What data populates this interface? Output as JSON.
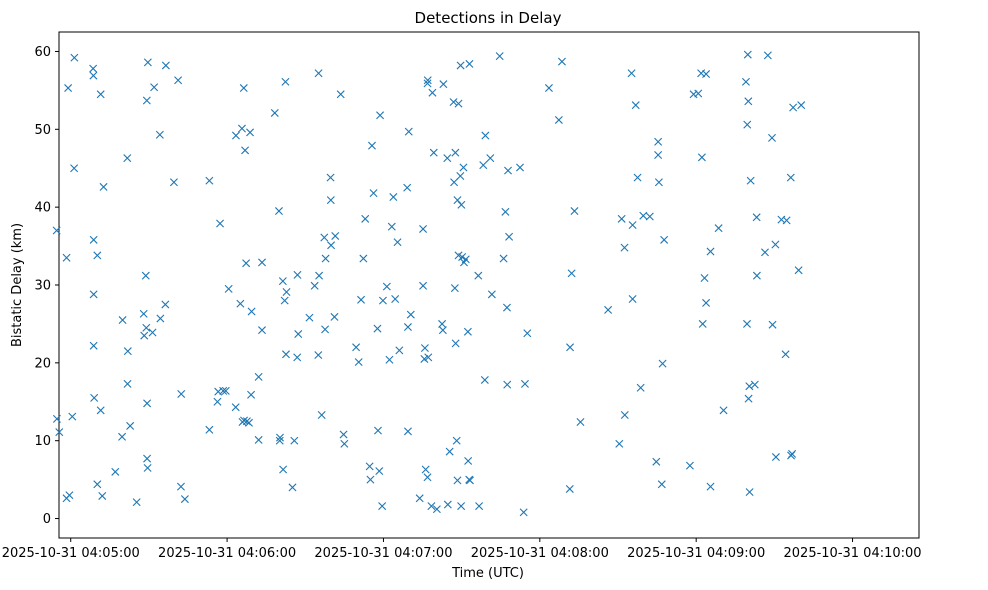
{
  "chart_data": {
    "type": "scatter",
    "title": "Detections in Delay",
    "xlabel": "Time (UTC)",
    "ylabel": "Bistatic Delay (km)",
    "marker": "x",
    "marker_color": "#1f77b4",
    "xlim_seconds": [
      -4.5,
      325.5
    ],
    "ylim": [
      -2.5,
      62.5
    ],
    "x_ticks": [
      {
        "label": "2025-10-31 04:05:00",
        "t": 0
      },
      {
        "label": "2025-10-31 04:06:00",
        "t": 60
      },
      {
        "label": "2025-10-31 04:07:00",
        "t": 120
      },
      {
        "label": "2025-10-31 04:08:00",
        "t": 180
      },
      {
        "label": "2025-10-31 04:09:00",
        "t": 240
      },
      {
        "label": "2025-10-31 04:10:00",
        "t": 300
      }
    ],
    "y_ticks": [
      {
        "label": "0",
        "v": 0
      },
      {
        "label": "10",
        "v": 10
      },
      {
        "label": "20",
        "v": 20
      },
      {
        "label": "30",
        "v": 30
      },
      {
        "label": "40",
        "v": 40
      },
      {
        "label": "50",
        "v": 50
      },
      {
        "label": "60",
        "v": 60
      }
    ],
    "points": [
      [
        -5.4,
        37.0
      ],
      [
        -5.3,
        12.8
      ],
      [
        -4.4,
        11.1
      ],
      [
        -1.6,
        33.5
      ],
      [
        -1.6,
        2.6
      ],
      [
        -1.0,
        55.3
      ],
      [
        -0.5,
        3.0
      ],
      [
        0.6,
        13.1
      ],
      [
        1.3,
        45.0
      ],
      [
        1.4,
        59.2
      ],
      [
        8.6,
        57.8
      ],
      [
        8.7,
        56.9
      ],
      [
        8.8,
        35.8
      ],
      [
        8.8,
        28.8
      ],
      [
        8.8,
        22.2
      ],
      [
        9.0,
        15.5
      ],
      [
        10.2,
        4.4
      ],
      [
        10.2,
        33.8
      ],
      [
        11.5,
        54.5
      ],
      [
        11.5,
        13.9
      ],
      [
        12.1,
        2.9
      ],
      [
        12.6,
        42.6
      ],
      [
        17.1,
        6.0
      ],
      [
        19.7,
        10.5
      ],
      [
        19.9,
        25.5
      ],
      [
        21.7,
        46.3
      ],
      [
        21.8,
        17.3
      ],
      [
        21.9,
        21.5
      ],
      [
        22.8,
        11.9
      ],
      [
        25.3,
        2.1
      ],
      [
        28.0,
        26.3
      ],
      [
        28.2,
        23.5
      ],
      [
        28.8,
        31.2
      ],
      [
        29.0,
        24.5
      ],
      [
        29.2,
        53.7
      ],
      [
        29.3,
        14.8
      ],
      [
        29.3,
        7.7
      ],
      [
        29.5,
        6.5
      ],
      [
        29.6,
        58.6
      ],
      [
        31.4,
        23.9
      ],
      [
        32.0,
        55.4
      ],
      [
        34.2,
        49.3
      ],
      [
        34.4,
        25.7
      ],
      [
        36.3,
        27.5
      ],
      [
        36.5,
        58.2
      ],
      [
        39.6,
        43.2
      ],
      [
        41.2,
        56.3
      ],
      [
        42.3,
        4.1
      ],
      [
        42.4,
        16.0
      ],
      [
        43.8,
        2.5
      ],
      [
        53.2,
        11.4
      ],
      [
        53.2,
        43.4
      ],
      [
        56.3,
        15.0
      ],
      [
        56.6,
        16.3
      ],
      [
        57.3,
        37.9
      ],
      [
        58.5,
        16.4
      ],
      [
        59.5,
        16.4
      ],
      [
        60.6,
        29.5
      ],
      [
        63.3,
        14.3
      ],
      [
        63.4,
        49.2
      ],
      [
        65.1,
        27.6
      ],
      [
        65.7,
        50.1
      ],
      [
        65.9,
        12.4
      ],
      [
        66.4,
        55.3
      ],
      [
        66.5,
        12.6
      ],
      [
        66.9,
        47.3
      ],
      [
        67.3,
        32.8
      ],
      [
        67.6,
        12.5
      ],
      [
        68.4,
        12.3
      ],
      [
        68.8,
        49.6
      ],
      [
        69.2,
        15.9
      ],
      [
        69.4,
        26.6
      ],
      [
        72.1,
        10.1
      ],
      [
        72.1,
        18.2
      ],
      [
        73.4,
        24.2
      ],
      [
        73.4,
        32.9
      ],
      [
        78.3,
        52.1
      ],
      [
        79.9,
        39.5
      ],
      [
        80.2,
        10.0
      ],
      [
        80.3,
        10.4
      ],
      [
        81.4,
        30.5
      ],
      [
        81.5,
        6.3
      ],
      [
        82.1,
        28.0
      ],
      [
        82.4,
        56.1
      ],
      [
        82.6,
        21.1
      ],
      [
        82.8,
        29.1
      ],
      [
        85.1,
        4.0
      ],
      [
        85.8,
        10.0
      ],
      [
        86.9,
        20.7
      ],
      [
        87.0,
        31.3
      ],
      [
        87.3,
        23.7
      ],
      [
        91.6,
        25.8
      ],
      [
        93.6,
        29.9
      ],
      [
        95.0,
        21.0
      ],
      [
        95.1,
        57.2
      ],
      [
        95.3,
        31.2
      ],
      [
        96.3,
        13.3
      ],
      [
        97.3,
        36.1
      ],
      [
        97.6,
        24.3
      ],
      [
        97.8,
        33.4
      ],
      [
        99.7,
        43.8
      ],
      [
        99.8,
        40.9
      ],
      [
        99.9,
        35.1
      ],
      [
        101.2,
        25.9
      ],
      [
        101.5,
        36.3
      ],
      [
        103.6,
        54.5
      ],
      [
        104.7,
        10.8
      ],
      [
        105.0,
        9.6
      ],
      [
        109.5,
        22.0
      ],
      [
        110.5,
        20.1
      ],
      [
        111.4,
        28.1
      ],
      [
        112.3,
        33.4
      ],
      [
        113.0,
        38.5
      ],
      [
        114.7,
        6.7
      ],
      [
        115.0,
        5.0
      ],
      [
        115.6,
        47.9
      ],
      [
        116.2,
        41.8
      ],
      [
        117.7,
        24.4
      ],
      [
        117.9,
        11.3
      ],
      [
        118.4,
        6.1
      ],
      [
        118.7,
        51.8
      ],
      [
        119.5,
        1.6
      ],
      [
        119.8,
        28.0
      ],
      [
        121.3,
        29.8
      ],
      [
        122.3,
        20.4
      ],
      [
        123.2,
        37.5
      ],
      [
        123.8,
        41.3
      ],
      [
        124.5,
        28.2
      ],
      [
        125.4,
        35.5
      ],
      [
        126.1,
        21.6
      ],
      [
        129.1,
        42.5
      ],
      [
        129.4,
        24.6
      ],
      [
        129.4,
        11.2
      ],
      [
        129.7,
        49.7
      ],
      [
        130.5,
        26.2
      ],
      [
        133.9,
        2.6
      ],
      [
        135.2,
        37.2
      ],
      [
        135.2,
        29.9
      ],
      [
        135.7,
        20.5
      ],
      [
        135.9,
        21.9
      ],
      [
        136.2,
        6.3
      ],
      [
        136.9,
        5.3
      ],
      [
        136.9,
        55.9
      ],
      [
        137.0,
        56.3
      ],
      [
        137.2,
        20.7
      ],
      [
        138.4,
        1.6
      ],
      [
        138.8,
        54.7
      ],
      [
        139.3,
        47.0
      ],
      [
        140.5,
        1.2
      ],
      [
        142.5,
        25.0
      ],
      [
        142.8,
        24.2
      ],
      [
        143.0,
        55.8
      ],
      [
        144.5,
        46.3
      ],
      [
        144.7,
        1.8
      ],
      [
        145.4,
        8.6
      ],
      [
        146.9,
        53.5
      ],
      [
        147.1,
        43.2
      ],
      [
        147.4,
        29.6
      ],
      [
        147.6,
        47.0
      ],
      [
        147.7,
        22.5
      ],
      [
        148.1,
        10.0
      ],
      [
        148.4,
        4.9
      ],
      [
        148.4,
        40.9
      ],
      [
        148.8,
        33.8
      ],
      [
        148.8,
        53.3
      ],
      [
        149.5,
        44.0
      ],
      [
        149.6,
        58.2
      ],
      [
        149.8,
        1.6
      ],
      [
        149.9,
        40.3
      ],
      [
        150.2,
        33.6
      ],
      [
        150.7,
        45.1
      ],
      [
        150.9,
        32.9
      ],
      [
        151.6,
        33.3
      ],
      [
        152.4,
        24.0
      ],
      [
        152.5,
        7.4
      ],
      [
        152.9,
        5.0
      ],
      [
        153.0,
        58.4
      ],
      [
        153.2,
        4.9
      ],
      [
        156.4,
        31.2
      ],
      [
        156.7,
        1.6
      ],
      [
        158.3,
        45.4
      ],
      [
        158.9,
        17.8
      ],
      [
        159.1,
        49.2
      ],
      [
        161.0,
        46.3
      ],
      [
        161.6,
        28.8
      ],
      [
        164.6,
        59.4
      ],
      [
        166.1,
        33.4
      ],
      [
        166.8,
        39.4
      ],
      [
        167.4,
        27.1
      ],
      [
        167.5,
        17.2
      ],
      [
        167.8,
        44.7
      ],
      [
        168.2,
        36.2
      ],
      [
        172.4,
        45.1
      ],
      [
        173.8,
        0.8
      ],
      [
        174.3,
        17.3
      ],
      [
        175.2,
        23.8
      ],
      [
        183.5,
        55.3
      ],
      [
        187.3,
        51.2
      ],
      [
        188.5,
        58.7
      ],
      [
        191.5,
        3.8
      ],
      [
        191.6,
        22.0
      ],
      [
        192.2,
        31.5
      ],
      [
        193.3,
        39.5
      ],
      [
        195.6,
        12.4
      ],
      [
        206.2,
        26.8
      ],
      [
        210.5,
        9.6
      ],
      [
        211.4,
        38.5
      ],
      [
        212.5,
        34.8
      ],
      [
        212.6,
        13.3
      ],
      [
        215.2,
        57.2
      ],
      [
        215.6,
        28.2
      ],
      [
        215.6,
        37.7
      ],
      [
        216.8,
        53.1
      ],
      [
        217.5,
        43.8
      ],
      [
        218.7,
        16.8
      ],
      [
        219.7,
        38.9
      ],
      [
        222.2,
        38.8
      ],
      [
        224.7,
        7.3
      ],
      [
        225.4,
        48.4
      ],
      [
        225.4,
        46.7
      ],
      [
        225.7,
        43.2
      ],
      [
        226.8,
        4.4
      ],
      [
        227.1,
        19.9
      ],
      [
        227.7,
        35.8
      ],
      [
        237.6,
        6.8
      ],
      [
        239.0,
        54.5
      ],
      [
        240.8,
        54.6
      ],
      [
        241.9,
        57.2
      ],
      [
        242.2,
        46.4
      ],
      [
        242.5,
        25.0
      ],
      [
        243.2,
        30.9
      ],
      [
        243.8,
        57.1
      ],
      [
        243.8,
        27.7
      ],
      [
        245.5,
        34.3
      ],
      [
        245.5,
        4.1
      ],
      [
        248.6,
        37.3
      ],
      [
        250.5,
        13.9
      ],
      [
        259.1,
        56.1
      ],
      [
        259.5,
        25.0
      ],
      [
        259.6,
        50.6
      ],
      [
        259.8,
        59.6
      ],
      [
        260.0,
        53.6
      ],
      [
        260.1,
        15.4
      ],
      [
        260.4,
        17.0
      ],
      [
        260.5,
        3.4
      ],
      [
        260.9,
        43.4
      ],
      [
        262.5,
        17.2
      ],
      [
        263.2,
        38.7
      ],
      [
        263.3,
        31.2
      ],
      [
        266.4,
        34.2
      ],
      [
        267.5,
        59.5
      ],
      [
        269.1,
        48.9
      ],
      [
        269.3,
        24.9
      ],
      [
        270.4,
        35.2
      ],
      [
        270.6,
        7.9
      ],
      [
        272.7,
        38.4
      ],
      [
        274.3,
        21.1
      ],
      [
        274.7,
        38.3
      ],
      [
        276.3,
        43.8
      ],
      [
        276.4,
        8.1
      ],
      [
        276.8,
        8.3
      ],
      [
        277.2,
        52.8
      ],
      [
        279.3,
        31.9
      ],
      [
        280.3,
        53.1
      ]
    ]
  }
}
